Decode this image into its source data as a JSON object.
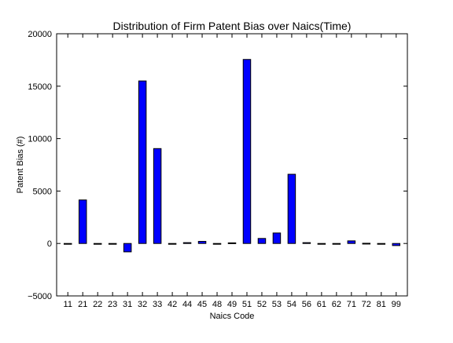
{
  "chart_data": {
    "type": "bar",
    "title": "Distribution of Firm Patent Bias over Naics(Time)",
    "xlabel": "Naics Code",
    "ylabel": "Patent Bias (#)",
    "categories": [
      "11",
      "21",
      "22",
      "23",
      "31",
      "32",
      "33",
      "42",
      "44",
      "45",
      "48",
      "49",
      "51",
      "52",
      "53",
      "54",
      "56",
      "61",
      "62",
      "71",
      "72",
      "81",
      "99"
    ],
    "values": [
      -30,
      4150,
      -20,
      -30,
      -800,
      15500,
      9050,
      -20,
      80,
      200,
      -30,
      60,
      17550,
      480,
      1000,
      6600,
      80,
      -40,
      -30,
      250,
      20,
      -30,
      -200
    ],
    "ylim": [
      -5000,
      20000
    ],
    "yticks": [
      -5000,
      0,
      5000,
      10000,
      15000,
      20000
    ],
    "ytick_labels": [
      "−5000",
      "0",
      "5000",
      "10000",
      "15000",
      "20000"
    ],
    "bar_color": "#0000ff",
    "grid": false,
    "legend": "none"
  }
}
